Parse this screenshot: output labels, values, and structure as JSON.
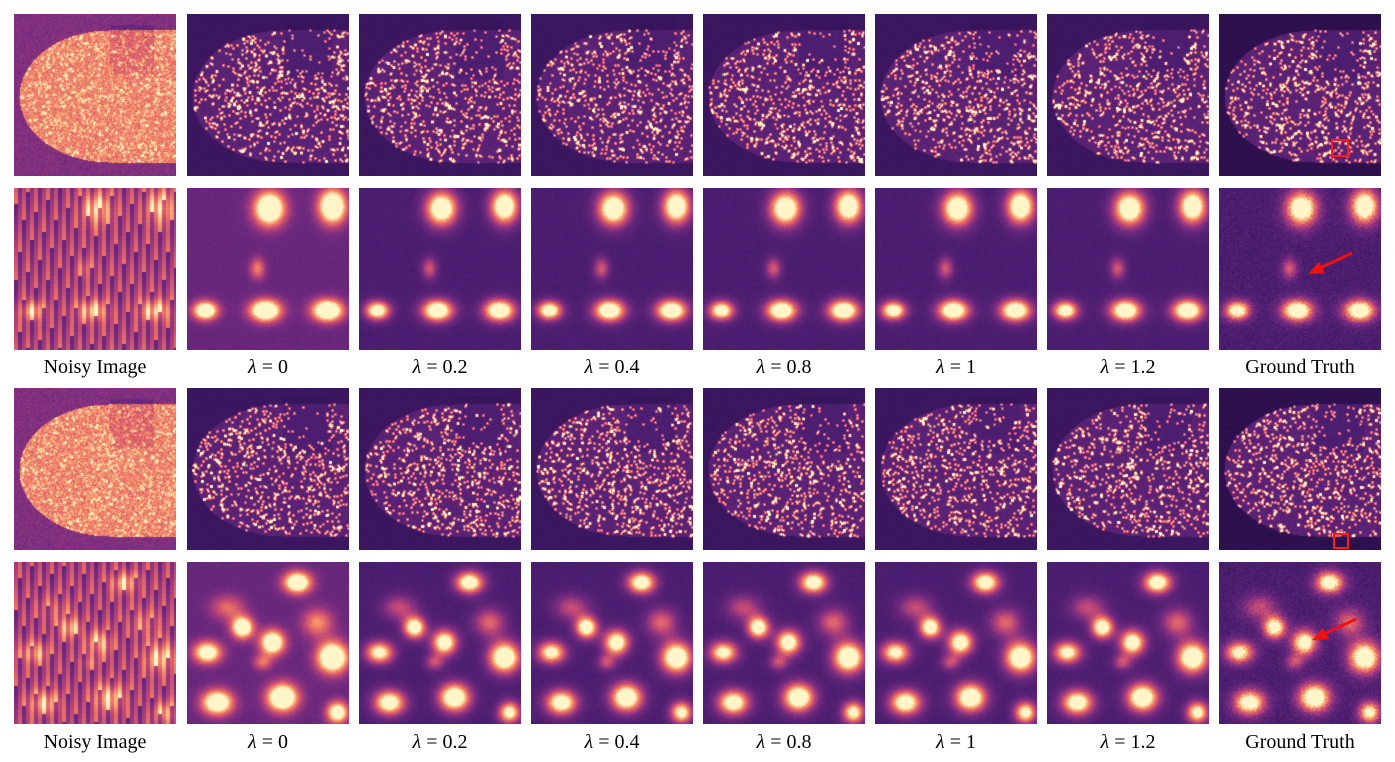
{
  "figure": {
    "blocks": [
      {
        "captions": [
          {
            "type": "text",
            "text": "Noisy Image"
          },
          {
            "type": "lambda",
            "symbol": "λ",
            "value": "0"
          },
          {
            "type": "lambda",
            "symbol": "λ",
            "value": "0.2"
          },
          {
            "type": "lambda",
            "symbol": "λ",
            "value": "0.4"
          },
          {
            "type": "lambda",
            "symbol": "λ",
            "value": "0.8"
          },
          {
            "type": "lambda",
            "symbol": "λ",
            "value": "1"
          },
          {
            "type": "lambda",
            "symbol": "λ",
            "value": "1.2"
          },
          {
            "type": "text",
            "text": "Ground Truth"
          }
        ]
      },
      {
        "captions": [
          {
            "type": "text",
            "text": "Noisy Image"
          },
          {
            "type": "lambda",
            "symbol": "λ",
            "value": "0"
          },
          {
            "type": "lambda",
            "symbol": "λ",
            "value": "0.2"
          },
          {
            "type": "lambda",
            "symbol": "λ",
            "value": "0.4"
          },
          {
            "type": "lambda",
            "symbol": "λ",
            "value": "0.8"
          },
          {
            "type": "lambda",
            "symbol": "λ",
            "value": "1"
          },
          {
            "type": "lambda",
            "symbol": "λ",
            "value": "1.2"
          },
          {
            "type": "text",
            "text": "Ground Truth"
          }
        ]
      }
    ],
    "colormap": "magma",
    "roi_color": "#ff1a1a",
    "arrow_color": "#ee1111"
  }
}
